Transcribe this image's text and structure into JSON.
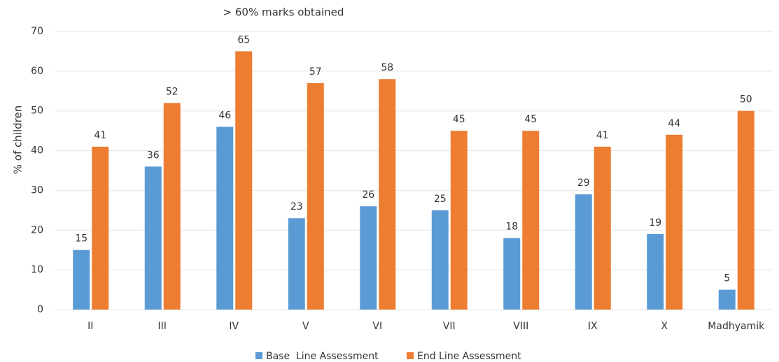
{
  "chart_data": {
    "type": "bar",
    "title": "> 60% marks obtained",
    "y_label": "% of children",
    "categories": [
      "II",
      "III",
      "IV",
      "V",
      "VI",
      "VII",
      "VIII",
      "IX",
      "X",
      "Madhyamik"
    ],
    "series": [
      {
        "name": "Base  Line Assessment",
        "color": "#5b9bd5",
        "values": [
          15,
          36,
          46,
          23,
          26,
          25,
          18,
          29,
          19,
          5
        ]
      },
      {
        "name": "End Line Assessment",
        "color": "#ed7d31",
        "values": [
          41,
          52,
          65,
          57,
          58,
          45,
          45,
          41,
          44,
          50
        ]
      }
    ],
    "ylim": [
      0,
      70
    ],
    "yticks": [
      0,
      10,
      20,
      30,
      40,
      50,
      60,
      70
    ],
    "grid": true,
    "legend": "bottom"
  }
}
